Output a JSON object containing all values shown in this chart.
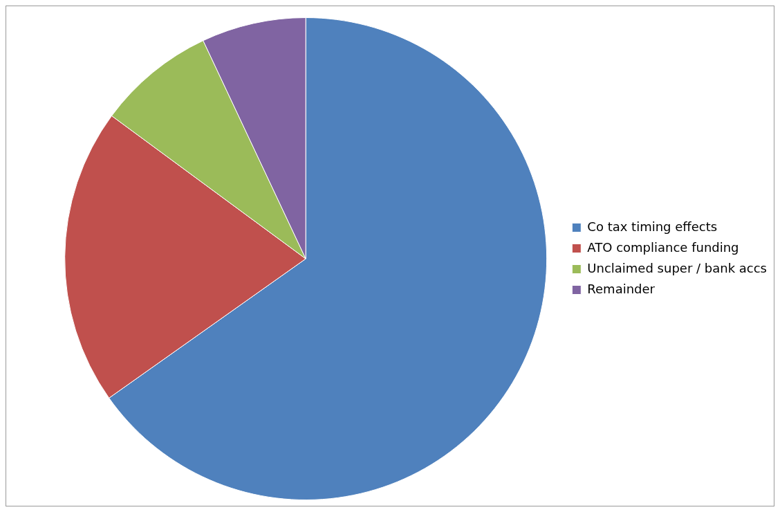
{
  "chart_data": {
    "type": "pie",
    "categories": [
      "Co tax timing effects",
      "ATO compliance funding",
      "Unclaimed super / bank accs",
      "Remainder"
    ],
    "values": [
      65.2,
      19.9,
      7.9,
      7.0
    ],
    "colors": [
      "#4f81bd",
      "#c0504d",
      "#9bbb59",
      "#8064a2"
    ],
    "legend": "right"
  }
}
